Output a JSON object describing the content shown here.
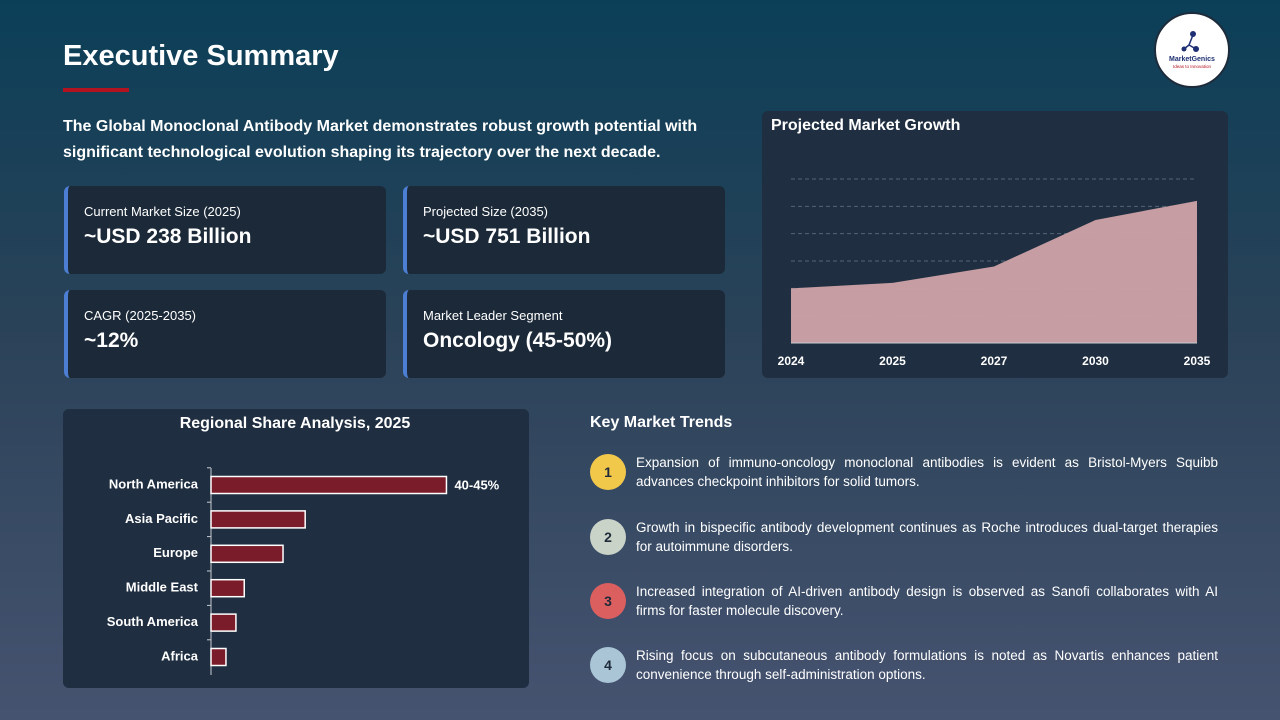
{
  "header": {
    "title": "Executive Summary",
    "logo_name": "MarketGenics",
    "logo_tagline": "Ideas to Innovation"
  },
  "intro": "The Global Monoclonal Antibody Market demonstrates robust growth potential with significant technological evolution shaping its trajectory over the next decade.",
  "cards": [
    {
      "label": "Current Market Size (2025)",
      "value": "~USD 238 Billion"
    },
    {
      "label": "Projected Size (2035)",
      "value": "~USD 751 Billion"
    },
    {
      "label": "CAGR (2025-2035)",
      "value": "~12%"
    },
    {
      "label": "Market Leader Segment",
      "value": "Oncology (45-50%)"
    }
  ],
  "chart_data": [
    {
      "type": "area",
      "title": "Projected Market Growth",
      "categories": [
        "2024",
        "2025",
        "2027",
        "2030",
        "2035"
      ],
      "values": [
        2.0,
        2.2,
        2.8,
        4.5,
        5.2
      ],
      "ylim": [
        0,
        6
      ],
      "yticks": [
        1,
        2,
        3,
        4,
        5,
        6
      ],
      "grid": true,
      "color": "#cfa3a8"
    },
    {
      "type": "bar",
      "orientation": "horizontal",
      "title": "Regional Share Analysis, 2025",
      "categories": [
        "North America",
        "Asia Pacific",
        "Europe",
        "Middle East",
        "South America",
        "Africa"
      ],
      "values": [
        42.5,
        17,
        13,
        6,
        4.5,
        2.7
      ],
      "value_labels": [
        "40-45%",
        null,
        null,
        null,
        null,
        null
      ],
      "xlim": [
        0,
        50
      ],
      "color": "#7b1c2a"
    }
  ],
  "trends": {
    "title": "Key Market Trends",
    "items": [
      {
        "number": "1",
        "color": "#f2c84b",
        "text": "Expansion of immuno-oncology monoclonal antibodies is evident as Bristol-Myers Squibb advances checkpoint inhibitors for solid tumors."
      },
      {
        "number": "2",
        "color": "#c9d3c7",
        "text": "Growth in bispecific antibody development continues as Roche introduces dual-target therapies for autoimmune disorders."
      },
      {
        "number": "3",
        "color": "#dc5f5f",
        "text": "Increased integration of AI-driven antibody design is observed as Sanofi collaborates with AI firms for faster molecule discovery."
      },
      {
        "number": "4",
        "color": "#a9c5d6",
        "text": "Rising focus on subcutaneous antibody formulations is noted as Novartis enhances patient convenience through self-administration options."
      }
    ]
  }
}
